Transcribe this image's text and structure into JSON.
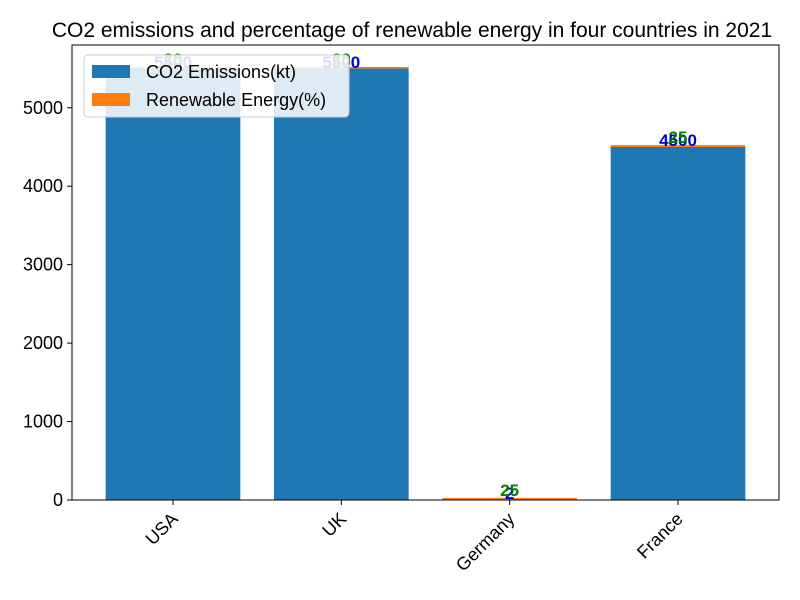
{
  "chart_data": {
    "type": "bar",
    "title": "CO2 emissions and percentage of renewable energy in four countries in 2021",
    "categories": [
      "USA",
      "UK",
      "Germany",
      "France"
    ],
    "series": [
      {
        "name": "CO2 Emissions(kt)",
        "values": [
          5500,
          5500,
          2,
          4500
        ],
        "color": "#1f77b4",
        "label_color": "#0000cc"
      },
      {
        "name": "Renewable Energy(%)",
        "values": [
          20,
          20,
          25,
          25
        ],
        "color": "#ff7f0e",
        "label_color": "#008000"
      }
    ],
    "stacked": true,
    "ylim": [
      0,
      5800
    ],
    "yticks": [
      0,
      1000,
      2000,
      3000,
      4000,
      5000
    ],
    "legend_position": "top-left",
    "xtick_rotation": 45
  }
}
